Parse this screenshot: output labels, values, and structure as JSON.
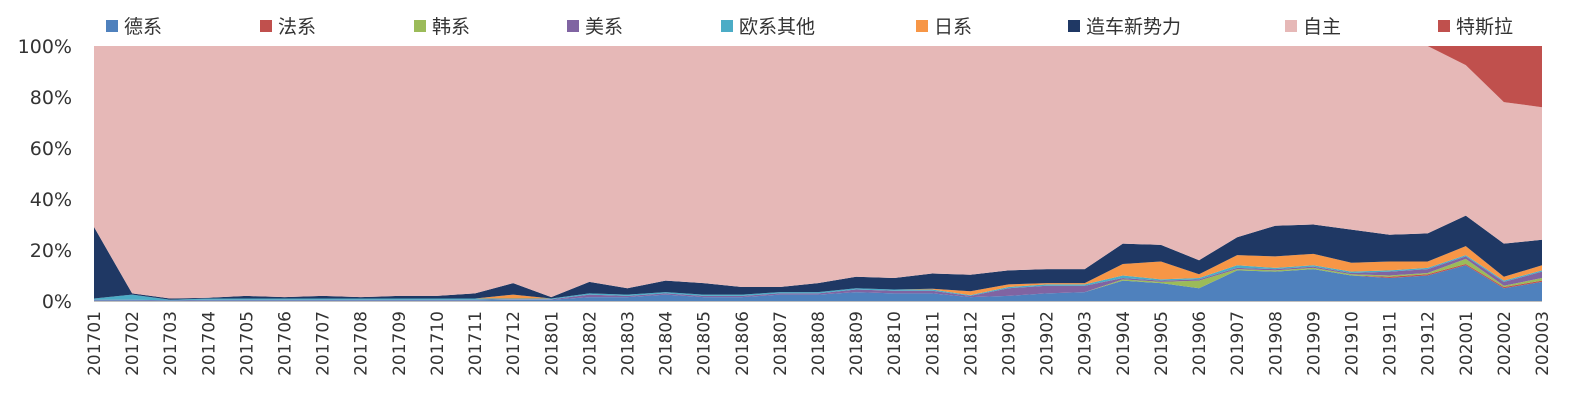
{
  "chart_data": {
    "type": "area",
    "stacked": true,
    "normalized": true,
    "legend_position": "top",
    "ylim": [
      0,
      100
    ],
    "yticks": [
      "0%",
      "20%",
      "40%",
      "60%",
      "80%",
      "100%"
    ],
    "categories": [
      "201701",
      "201702",
      "201703",
      "201704",
      "201705",
      "201706",
      "201707",
      "201708",
      "201709",
      "201710",
      "201711",
      "201712",
      "201801",
      "201802",
      "201803",
      "201804",
      "201805",
      "201806",
      "201807",
      "201808",
      "201809",
      "201810",
      "201811",
      "201812",
      "201901",
      "201902",
      "201903",
      "201904",
      "201905",
      "201906",
      "201907",
      "201908",
      "201909",
      "201910",
      "201911",
      "201912",
      "202001",
      "202002",
      "202003"
    ],
    "series": [
      {
        "name": "德系",
        "color": "#4F81BD",
        "values": [
          0.3,
          0.3,
          0.2,
          0.3,
          0.3,
          0.3,
          0.3,
          0.3,
          0.3,
          0.3,
          0.3,
          0.5,
          0.5,
          1.5,
          1.5,
          2.5,
          1.5,
          1.5,
          2.5,
          2.5,
          3.5,
          3.0,
          3.0,
          1.5,
          2.0,
          3.0,
          3.5,
          8.0,
          7.0,
          5.0,
          12.0,
          11.5,
          12.5,
          10.0,
          9.0,
          10.0,
          14.0,
          5.0,
          7.5
        ]
      },
      {
        "name": "法系",
        "color": "#C0504D",
        "values": [
          0,
          0,
          0,
          0,
          0,
          0,
          0,
          0,
          0,
          0,
          0,
          0,
          0,
          0,
          0,
          0,
          0,
          0,
          0,
          0,
          0,
          0,
          0,
          0,
          0,
          0,
          0,
          0,
          0,
          0,
          0,
          0,
          0,
          0,
          0.5,
          0.5,
          0.5,
          0.5,
          0.5
        ]
      },
      {
        "name": "韩系",
        "color": "#9BBB59",
        "values": [
          0,
          0,
          0,
          0,
          0,
          0,
          0,
          0,
          0,
          0,
          0,
          0,
          0,
          0,
          0,
          0,
          0,
          0,
          0,
          0,
          0,
          0,
          0,
          0,
          0,
          0,
          0,
          0.5,
          0.5,
          3.0,
          0.5,
          0.5,
          0.5,
          0.5,
          0.5,
          0.5,
          2.0,
          0.5,
          1.0
        ]
      },
      {
        "name": "美系",
        "color": "#8064A2",
        "values": [
          0.2,
          0.2,
          0.1,
          0.2,
          0.2,
          0.2,
          0.2,
          0.2,
          0.2,
          0.2,
          0.2,
          0.2,
          0.2,
          1.0,
          0.5,
          0.5,
          0.5,
          0.5,
          0.5,
          0.5,
          1.0,
          1.0,
          1.0,
          0.5,
          3.0,
          3.0,
          2.5,
          0.5,
          0.5,
          0.5,
          0.5,
          0.5,
          0.5,
          0.5,
          1.5,
          1.5,
          1.0,
          1.5,
          2.5
        ]
      },
      {
        "name": "欧系其他",
        "color": "#4BACC6",
        "values": [
          0.5,
          2.0,
          0.2,
          0.5,
          0.5,
          0.5,
          0.5,
          0.5,
          0.5,
          0.5,
          0.5,
          0.3,
          0.3,
          0.5,
          0.5,
          0.5,
          0.5,
          0.5,
          0.5,
          0.5,
          0.5,
          0.5,
          0.5,
          0.3,
          0.5,
          0.5,
          0.5,
          1.0,
          0.5,
          0.5,
          1.0,
          0.5,
          0.5,
          0.5,
          0.5,
          0.5,
          0.5,
          0.5,
          0.5
        ]
      },
      {
        "name": "日系",
        "color": "#F79646",
        "values": [
          0,
          0,
          0,
          0,
          0,
          0,
          0,
          0,
          0,
          0,
          0,
          1.5,
          0,
          0,
          0,
          0,
          0,
          0,
          0,
          0,
          0,
          0,
          0.3,
          1.5,
          1.0,
          0.5,
          0.5,
          4.5,
          7.0,
          1.5,
          4.0,
          4.5,
          4.5,
          3.5,
          3.5,
          2.5,
          3.5,
          1.5,
          2.0
        ]
      },
      {
        "name": "造车新势力",
        "color": "#1F3864",
        "values": [
          28.0,
          0.5,
          0.5,
          0.3,
          1.0,
          0.5,
          1.0,
          0.5,
          1.0,
          1.0,
          2.0,
          4.5,
          0.5,
          4.5,
          2.5,
          4.5,
          4.5,
          3.0,
          2.0,
          3.5,
          4.5,
          4.5,
          6.0,
          6.5,
          5.5,
          5.5,
          5.5,
          8.0,
          6.5,
          5.5,
          7.0,
          12.0,
          11.5,
          13.0,
          10.5,
          11.0,
          12.0,
          13.0,
          10.0
        ]
      },
      {
        "name": "自主",
        "color": "#E6B8B7",
        "values": [
          71.0,
          97.0,
          99.0,
          98.7,
          98.0,
          98.5,
          98.0,
          98.5,
          98.0,
          98.0,
          97.0,
          93.0,
          98.5,
          92.5,
          95.0,
          92.0,
          93.0,
          94.5,
          94.5,
          93.0,
          90.5,
          91.0,
          89.2,
          89.7,
          88.0,
          87.5,
          87.5,
          77.5,
          78.0,
          84.0,
          75.0,
          70.5,
          70.0,
          72.0,
          74.0,
          73.5,
          59.0,
          55.5,
          52.0
        ]
      },
      {
        "name": "特斯拉",
        "color": "#C0504D",
        "values": [
          0,
          0,
          0,
          0,
          0,
          0,
          0,
          0,
          0,
          0,
          0,
          0,
          0,
          0,
          0,
          0,
          0,
          0,
          0,
          0,
          0,
          0,
          0,
          0,
          0,
          0,
          0,
          0,
          0,
          0,
          0,
          0,
          0,
          0,
          0,
          0,
          7.5,
          22.0,
          24.0
        ]
      }
    ]
  }
}
